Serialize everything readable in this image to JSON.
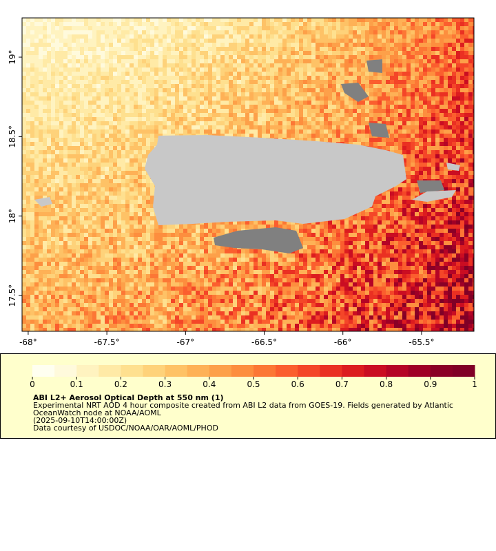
{
  "map": {
    "xlim": [
      -68.039,
      -65.167
    ],
    "ylim": [
      17.275,
      19.247
    ],
    "xticks": [
      {
        "value": -68,
        "label": "-68°"
      },
      {
        "value": -67.5,
        "label": "-67.5°"
      },
      {
        "value": -67,
        "label": "-67°"
      },
      {
        "value": -66.5,
        "label": "-66.5°"
      },
      {
        "value": -66,
        "label": "-66°"
      },
      {
        "value": -65.5,
        "label": "-65.5°"
      }
    ],
    "yticks": [
      {
        "value": 17.5,
        "label": "17.5°"
      },
      {
        "value": 18,
        "label": "18°"
      },
      {
        "value": 18.5,
        "label": "18.5°"
      },
      {
        "value": 19,
        "label": "19°"
      }
    ]
  },
  "colorbar": {
    "lim": [
      0,
      1
    ],
    "ticks": [
      0,
      0.1,
      0.2,
      0.3,
      0.4,
      0.5,
      0.6,
      0.7,
      0.8,
      0.9,
      1
    ],
    "colors": [
      "#fffff0",
      "#fffadc",
      "#fff3c0",
      "#ffeaa6",
      "#fee08f",
      "#fed27a",
      "#fec266",
      "#feb156",
      "#fda049",
      "#fd8e3e",
      "#fc7735",
      "#fb5e2e",
      "#f44628",
      "#ea3022",
      "#dc1c1f",
      "#ca0d22",
      "#b50426",
      "#9f0026",
      "#8a0026",
      "#800026"
    ]
  },
  "legend": {
    "title": "ABI L2+ Aerosol Optical Depth at 550 nm (1)",
    "lines": [
      "Experimental NRT AOD 4 hour composite created from ABI L2 data from GOES-19. Fields generated by Atlantic",
      "OceanWatch node at NOAA/AOML",
      "(2025-09-10T14:00:00Z)",
      "Data courtesy of USDOC/NOAA/OAR/AOML/PHOD"
    ]
  }
}
